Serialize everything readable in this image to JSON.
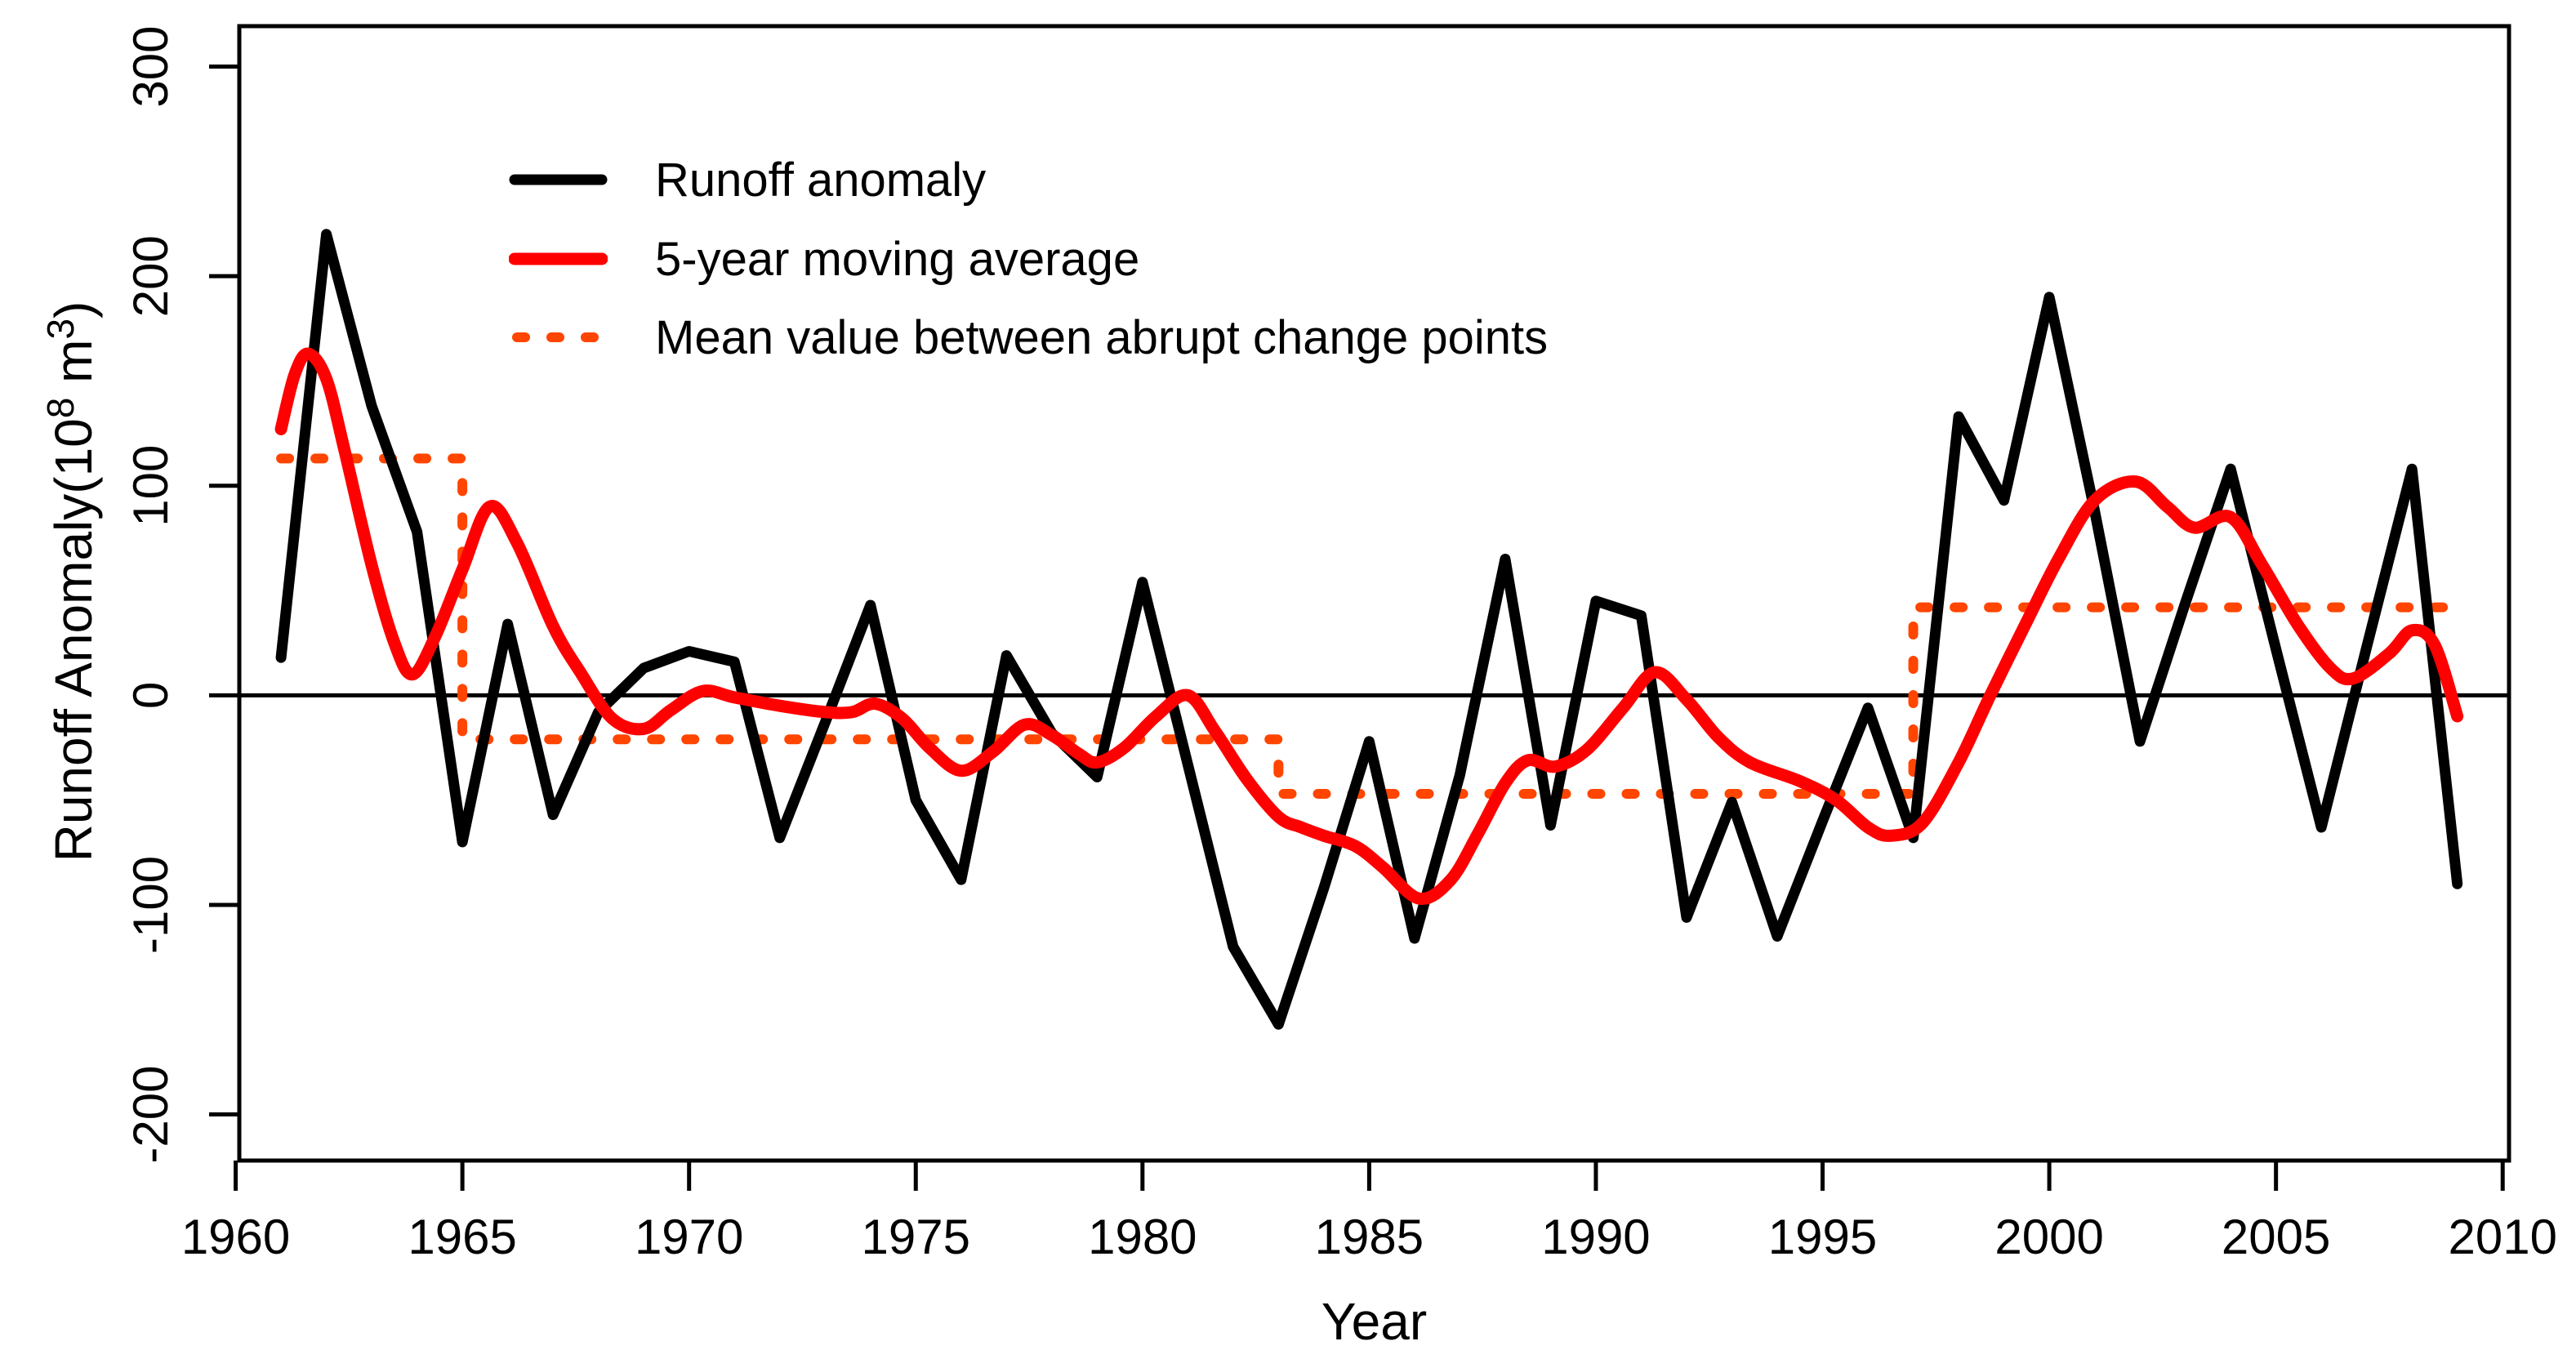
{
  "figure": {
    "background": "#ffffff",
    "frame_color": "#000000"
  },
  "legend": {
    "items": [
      {
        "label": "Runoff anomaly",
        "style": "solid",
        "color": "#000000"
      },
      {
        "label": "5-year moving average",
        "style": "solid",
        "color": "#ff0000"
      },
      {
        "label": "Mean value between abrupt change points",
        "style": "dotted",
        "color": "#ff4500"
      }
    ]
  },
  "chart_data": {
    "type": "line",
    "title": "",
    "xlabel": "Year",
    "ylabel": "Runoff Anomaly(10⁸ m³)",
    "ylabel_parts": [
      {
        "text": "Runoff Anomaly(10"
      },
      {
        "text": "8",
        "sup": true
      },
      {
        "text": " m"
      },
      {
        "text": "3",
        "sup": true
      },
      {
        "text": ")"
      }
    ],
    "xlim": [
      1960.08,
      2010.14
    ],
    "ylim": [
      -222,
      319.3
    ],
    "x_ticks": [
      1960,
      1965,
      1970,
      1975,
      1980,
      1985,
      1990,
      1995,
      2000,
      2005,
      2010
    ],
    "y_ticks": [
      -200,
      -100,
      0,
      100,
      200,
      300
    ],
    "grid": false,
    "zero_line": true,
    "legend_position": "top-left-inside",
    "series": [
      {
        "name": "Runoff anomaly",
        "type": "line",
        "color": "#000000",
        "line_width": 13,
        "years": [
          1961,
          1962,
          1963,
          1964,
          1965,
          1966,
          1967,
          1968,
          1969,
          1970,
          1971,
          1972,
          1973,
          1974,
          1975,
          1976,
          1977,
          1978,
          1979,
          1980,
          1981,
          1982,
          1983,
          1984,
          1985,
          1986,
          1987,
          1988,
          1989,
          1990,
          1991,
          1992,
          1993,
          1994,
          1995,
          1996,
          1997,
          1998,
          1999,
          2000,
          2001,
          2002,
          2003,
          2004,
          2005,
          2006,
          2007,
          2008,
          2009
        ],
        "values": [
          18,
          220,
          138,
          78,
          -70,
          34,
          -57,
          -8,
          13,
          21,
          16,
          -68,
          -13,
          43,
          -50,
          -88,
          19,
          -18,
          -39,
          54,
          -33,
          -120,
          -157,
          -92,
          -22,
          -116,
          -38,
          65,
          -62,
          45,
          38,
          -106,
          -51,
          -115,
          -60,
          -6,
          -68,
          133,
          93,
          190,
          88,
          -22,
          44,
          108,
          22,
          -63,
          23,
          108,
          -90
        ]
      },
      {
        "name": "5-year moving average",
        "type": "smooth-line",
        "color": "#ff0000",
        "line_width": 15,
        "points": [
          [
            1961,
            127
          ],
          [
            1961.3,
            153
          ],
          [
            1961.6,
            163
          ],
          [
            1962,
            151
          ],
          [
            1962.4,
            117
          ],
          [
            1963,
            62
          ],
          [
            1963.5,
            25
          ],
          [
            1963.9,
            10
          ],
          [
            1964.4,
            28
          ],
          [
            1965,
            60
          ],
          [
            1965.6,
            90
          ],
          [
            1966.2,
            73
          ],
          [
            1967,
            33
          ],
          [
            1967.6,
            11
          ],
          [
            1968.3,
            -11
          ],
          [
            1969,
            -16
          ],
          [
            1969.6,
            -7
          ],
          [
            1970.3,
            2
          ],
          [
            1971,
            -1
          ],
          [
            1972,
            -5
          ],
          [
            1973,
            -8
          ],
          [
            1973.6,
            -8
          ],
          [
            1974.1,
            -4
          ],
          [
            1974.7,
            -11
          ],
          [
            1975.3,
            -25
          ],
          [
            1976,
            -36
          ],
          [
            1976.7,
            -27
          ],
          [
            1977.4,
            -14
          ],
          [
            1978,
            -19
          ],
          [
            1978.6,
            -28
          ],
          [
            1979,
            -32
          ],
          [
            1979.6,
            -25
          ],
          [
            1980.3,
            -10
          ],
          [
            1981,
            0
          ],
          [
            1981.6,
            -17
          ],
          [
            1982.3,
            -40
          ],
          [
            1983,
            -58
          ],
          [
            1983.5,
            -63
          ],
          [
            1984,
            -67
          ],
          [
            1984.7,
            -72
          ],
          [
            1985.3,
            -82
          ],
          [
            1986.1,
            -97
          ],
          [
            1986.8,
            -88
          ],
          [
            1987.4,
            -66
          ],
          [
            1988,
            -42
          ],
          [
            1988.5,
            -31
          ],
          [
            1989.1,
            -34
          ],
          [
            1989.8,
            -26
          ],
          [
            1990.6,
            -6
          ],
          [
            1991.3,
            11
          ],
          [
            1992,
            -2
          ],
          [
            1992.7,
            -20
          ],
          [
            1993.4,
            -32
          ],
          [
            1994.5,
            -41
          ],
          [
            1995.3,
            -50
          ],
          [
            1996,
            -63
          ],
          [
            1996.5,
            -67
          ],
          [
            1997.2,
            -61
          ],
          [
            1998,
            -32
          ],
          [
            1998.7,
            0
          ],
          [
            1999.5,
            35
          ],
          [
            2000.2,
            65
          ],
          [
            2001,
            93
          ],
          [
            2001.9,
            102
          ],
          [
            2002.6,
            90
          ],
          [
            2003.2,
            80
          ],
          [
            2004,
            85
          ],
          [
            2004.7,
            62
          ],
          [
            2005.5,
            33
          ],
          [
            2006.2,
            13
          ],
          [
            2006.7,
            8
          ],
          [
            2007.5,
            20
          ],
          [
            2008,
            31
          ],
          [
            2008.5,
            24
          ],
          [
            2009,
            -10
          ]
        ]
      },
      {
        "name": "Mean value between abrupt change points",
        "type": "step-dotted",
        "color": "#ff4500",
        "line_width": 12,
        "change_points": [
          1965,
          1983,
          1997
        ],
        "segments": [
          {
            "from": 1961,
            "to": 1965,
            "mean": 113
          },
          {
            "from": 1965,
            "to": 1983,
            "mean": -21
          },
          {
            "from": 1983,
            "to": 1997,
            "mean": -47
          },
          {
            "from": 1997,
            "to": 2009,
            "mean": 42
          }
        ]
      }
    ]
  }
}
